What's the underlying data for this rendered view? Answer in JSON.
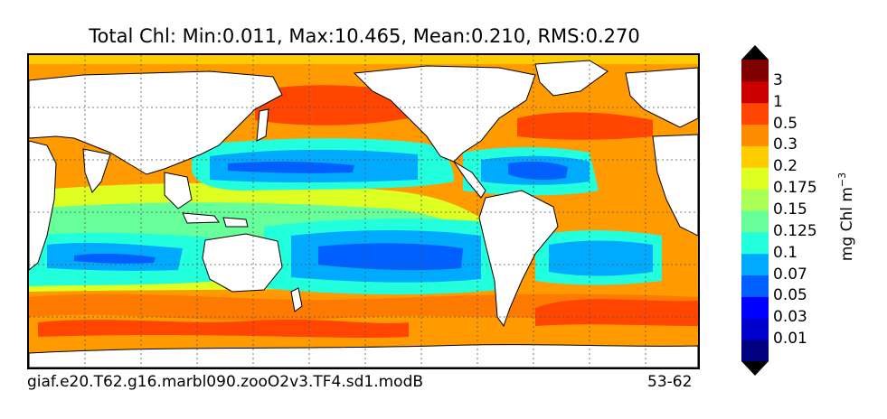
{
  "title": "Total Chl: Min:0.011, Max:10.465, Mean:0.210, RMS:0.270",
  "footer_left": "giaf.e20.T62.g16.marbl090.zooO2v3.TF4.sd1.modB",
  "footer_right": "53-62",
  "units_base": "mg Chl m",
  "units_exp": "−3",
  "colorbar": {
    "labels": [
      "3",
      "1",
      "0.5",
      "0.3",
      "0.2",
      "0.175",
      "0.15",
      "0.125",
      "0.1",
      "0.07",
      "0.05",
      "0.03",
      "0.01"
    ],
    "colors": [
      "#000080",
      "#0000cd",
      "#0000ff",
      "#0060ff",
      "#00aaff",
      "#22ffdd",
      "#66ff99",
      "#aaff55",
      "#ddff22",
      "#ffcc00",
      "#ff8c00",
      "#ff4500",
      "#cc0000",
      "#800000"
    ],
    "over_color": "#000000",
    "under_color": "#000000"
  },
  "map": {
    "land_color": "#ffffff",
    "coastline_color": "#000000",
    "gridlines": true,
    "gridline_style": "dotted"
  }
}
